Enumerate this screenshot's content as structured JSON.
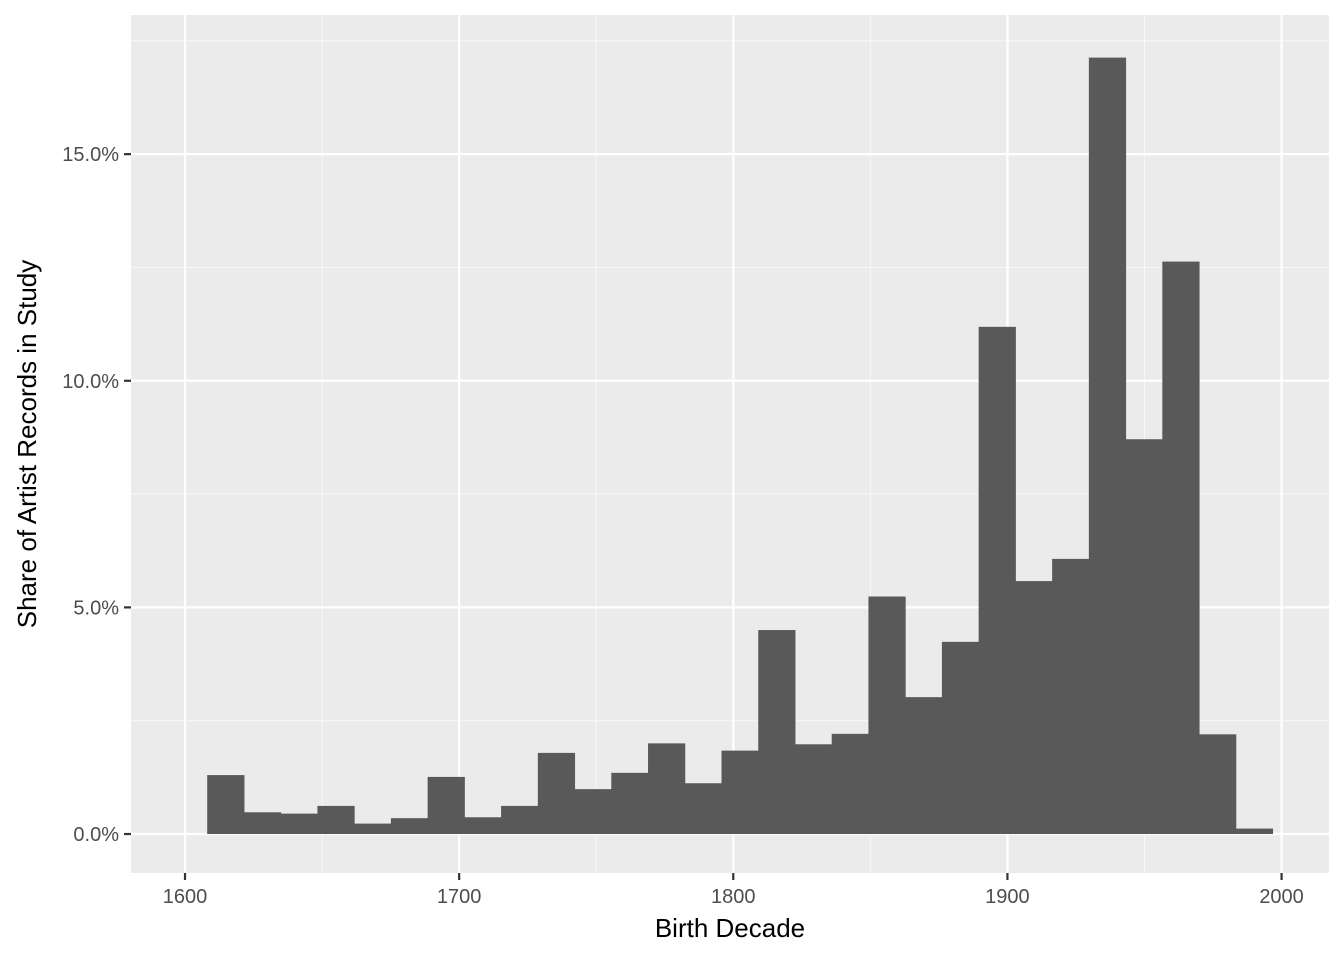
{
  "chart_data": {
    "type": "bar",
    "title": "",
    "xlabel": "Birth Decade",
    "ylabel": "Share of Artist Records in Study",
    "x_ticks": [
      "1600",
      "1700",
      "1800",
      "1900",
      "2000"
    ],
    "x_tick_values": [
      1600,
      1700,
      1800,
      1900,
      2000
    ],
    "y_ticks": [
      "0.0%",
      "5.0%",
      "10.0%",
      "15.0%"
    ],
    "y_tick_values": [
      0,
      5,
      10,
      15
    ],
    "xlim": [
      1580.3,
      2017.3
    ],
    "ylim": [
      -0.86,
      18.07
    ],
    "grid": true,
    "bin_width": 13.4,
    "bins": [
      {
        "start": 1608.1,
        "value": 1.3
      },
      {
        "start": 1621.5,
        "value": 0.48
      },
      {
        "start": 1634.9,
        "value": 0.45
      },
      {
        "start": 1648.3,
        "value": 0.62
      },
      {
        "start": 1661.7,
        "value": 0.23
      },
      {
        "start": 1675.1,
        "value": 0.35
      },
      {
        "start": 1688.5,
        "value": 1.26
      },
      {
        "start": 1701.9,
        "value": 0.37
      },
      {
        "start": 1715.3,
        "value": 0.62
      },
      {
        "start": 1728.7,
        "value": 1.79
      },
      {
        "start": 1742.1,
        "value": 0.99
      },
      {
        "start": 1755.5,
        "value": 1.35
      },
      {
        "start": 1768.9,
        "value": 2.0
      },
      {
        "start": 1782.3,
        "value": 1.12
      },
      {
        "start": 1795.7,
        "value": 1.84
      },
      {
        "start": 1809.1,
        "value": 4.5
      },
      {
        "start": 1822.5,
        "value": 1.98
      },
      {
        "start": 1835.9,
        "value": 2.21
      },
      {
        "start": 1849.3,
        "value": 5.24
      },
      {
        "start": 1862.7,
        "value": 3.02
      },
      {
        "start": 1876.1,
        "value": 4.24
      },
      {
        "start": 1889.5,
        "value": 11.19
      },
      {
        "start": 1902.9,
        "value": 5.58
      },
      {
        "start": 1916.3,
        "value": 6.07
      },
      {
        "start": 1929.7,
        "value": 17.13
      },
      {
        "start": 1943.1,
        "value": 8.71
      },
      {
        "start": 1956.5,
        "value": 12.63
      },
      {
        "start": 1969.9,
        "value": 2.2
      },
      {
        "start": 1983.3,
        "value": 0.12
      }
    ]
  },
  "colors": {
    "panel_background": "#ebebeb",
    "grid_major": "#ffffff",
    "grid_minor": "#f7f7f7",
    "bar_fill": "#595959",
    "tick_text": "#4d4d4d",
    "axis_text": "#000000"
  }
}
